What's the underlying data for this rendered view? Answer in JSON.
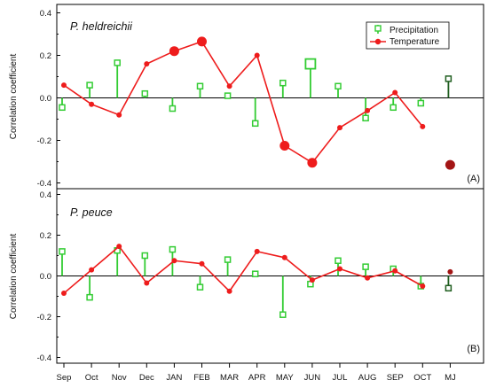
{
  "figure": {
    "ylabel": "Correlation coefficient",
    "months": [
      "Sep",
      "Oct",
      "Nov",
      "Dec",
      "JAN",
      "FEB",
      "MAR",
      "APR",
      "MAY",
      "JUN",
      "JUL",
      "AUG",
      "SEP",
      "OCT",
      "MJ"
    ],
    "legend": {
      "precipitation": "Precipitation",
      "temperature": "Temperature"
    },
    "colors": {
      "precipitation": "#33cc33",
      "temperature": "#ee1c1c",
      "mj_precipitation": "#1f5e1f",
      "mj_temperature": "#a31515"
    }
  },
  "chart_data": [
    {
      "type": "line",
      "title": "P. heldreichii",
      "panel_tag": "(A)",
      "ylabel": "Correlation coefficient",
      "ylim": [
        -0.42,
        0.42
      ],
      "yticks": [
        "0.4",
        "0.2",
        "0.0",
        "-0.2",
        "-0.4"
      ],
      "categories": [
        "Sep",
        "Oct",
        "Nov",
        "Dec",
        "JAN",
        "FEB",
        "MAR",
        "APR",
        "MAY",
        "JUN",
        "JUL",
        "AUG",
        "SEP",
        "OCT",
        "MJ"
      ],
      "series": [
        {
          "name": "Precipitation",
          "type": "stem",
          "values": [
            -0.045,
            0.06,
            0.165,
            0.02,
            -0.05,
            0.055,
            0.01,
            -0.12,
            0.07,
            0.16,
            0.055,
            -0.095,
            -0.045,
            -0.025,
            0.09
          ],
          "highlighted": [
            false,
            false,
            false,
            false,
            false,
            false,
            false,
            false,
            false,
            true,
            false,
            false,
            false,
            false,
            false
          ]
        },
        {
          "name": "Temperature",
          "type": "line",
          "values": [
            0.06,
            -0.03,
            -0.08,
            0.16,
            0.22,
            0.265,
            0.055,
            0.2,
            -0.225,
            -0.305,
            -0.14,
            -0.06,
            0.025,
            -0.135,
            -0.315
          ],
          "highlighted": [
            false,
            false,
            false,
            false,
            true,
            true,
            false,
            false,
            true,
            true,
            false,
            false,
            false,
            false,
            true
          ]
        }
      ]
    },
    {
      "type": "line",
      "title": "P. peuce",
      "panel_tag": "(B)",
      "ylabel": "Correlation coefficient",
      "ylim": [
        -0.42,
        0.42
      ],
      "yticks": [
        "0.4",
        "0.2",
        "0.0",
        "-0.2",
        "-0.4"
      ],
      "categories": [
        "Sep",
        "Oct",
        "Nov",
        "Dec",
        "JAN",
        "FEB",
        "MAR",
        "APR",
        "MAY",
        "JUN",
        "JUL",
        "AUG",
        "SEP",
        "OCT",
        "MJ"
      ],
      "series": [
        {
          "name": "Precipitation",
          "type": "stem",
          "values": [
            0.12,
            -0.105,
            0.125,
            0.1,
            0.13,
            -0.055,
            0.08,
            0.01,
            -0.19,
            -0.04,
            0.075,
            0.045,
            0.035,
            -0.05,
            -0.06
          ],
          "highlighted": [
            false,
            false,
            false,
            false,
            false,
            false,
            false,
            false,
            false,
            false,
            false,
            false,
            false,
            false,
            false
          ]
        },
        {
          "name": "Temperature",
          "type": "line",
          "values": [
            -0.085,
            0.03,
            0.145,
            -0.035,
            0.075,
            0.06,
            -0.075,
            0.12,
            0.09,
            -0.02,
            0.035,
            -0.01,
            0.025,
            -0.05,
            0.02
          ],
          "highlighted": [
            false,
            false,
            false,
            false,
            false,
            false,
            false,
            false,
            false,
            false,
            false,
            false,
            false,
            false,
            false
          ]
        }
      ]
    }
  ]
}
